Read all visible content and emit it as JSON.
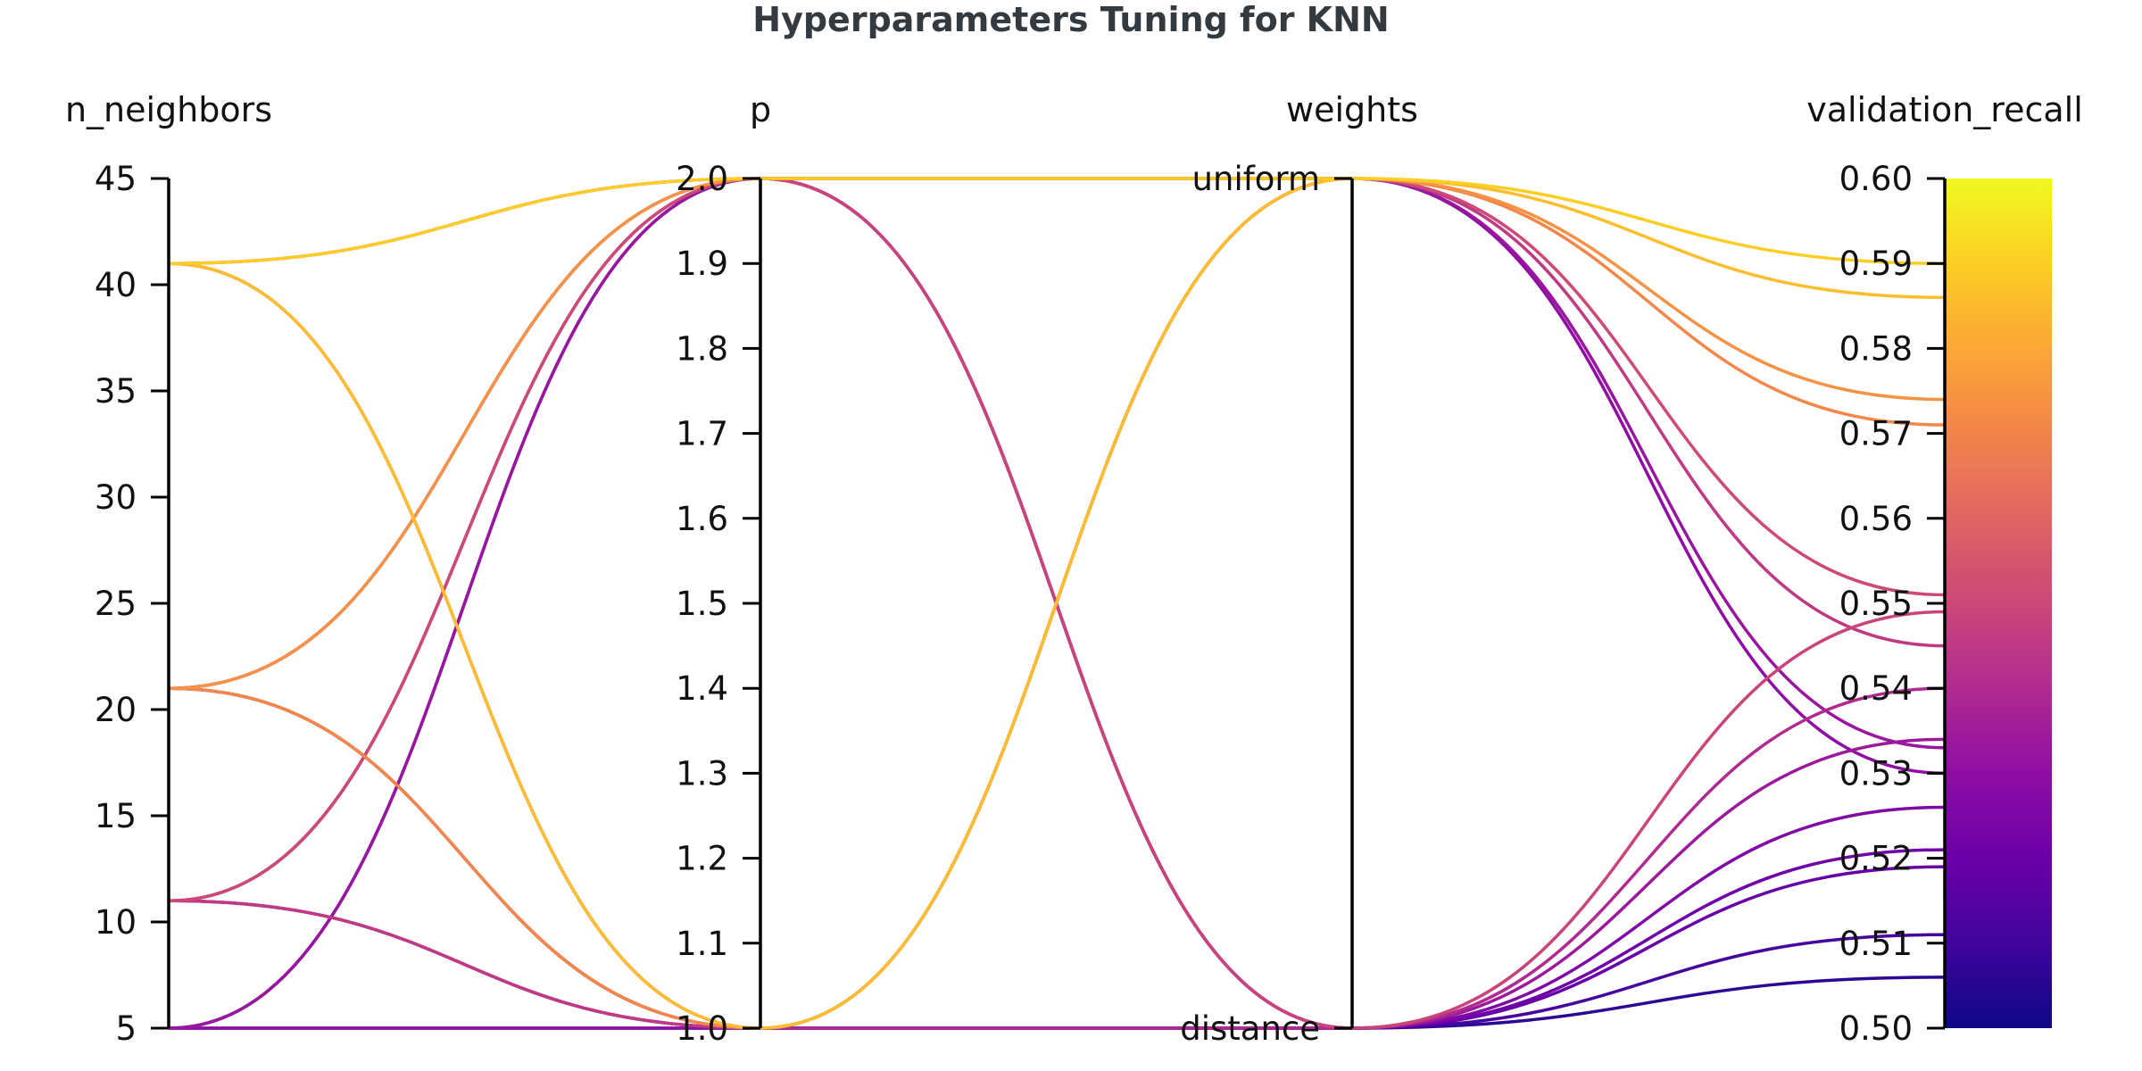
{
  "chart_data": {
    "type": "parallel_coordinates",
    "title": "Hyperparameters Tuning for KNN",
    "axes": [
      {
        "name": "n_neighbors",
        "kind": "numeric",
        "range": [
          5,
          45
        ],
        "ticks": [
          5,
          10,
          15,
          20,
          25,
          30,
          35,
          40,
          45
        ],
        "tick_labels": [
          "5",
          "10",
          "15",
          "20",
          "25",
          "30",
          "35",
          "40",
          "45"
        ]
      },
      {
        "name": "p",
        "kind": "numeric",
        "range": [
          1.0,
          2.0
        ],
        "ticks": [
          1.0,
          1.1,
          1.2,
          1.3,
          1.4,
          1.5,
          1.6,
          1.7,
          1.8,
          1.9,
          2.0
        ],
        "tick_labels": [
          "1.0",
          "1.1",
          "1.2",
          "1.3",
          "1.4",
          "1.5",
          "1.6",
          "1.7",
          "1.8",
          "1.9",
          "2.0"
        ]
      },
      {
        "name": "weights",
        "kind": "categorical",
        "categories": [
          "distance",
          "uniform"
        ],
        "tick_labels": [
          "distance",
          "uniform"
        ]
      },
      {
        "name": "validation_recall",
        "kind": "numeric",
        "range": [
          0.5,
          0.6
        ],
        "ticks": [
          0.5,
          0.51,
          0.52,
          0.53,
          0.54,
          0.55,
          0.56,
          0.57,
          0.58,
          0.59,
          0.6
        ],
        "tick_labels": [
          "0.50",
          "0.51",
          "0.52",
          "0.53",
          "0.54",
          "0.55",
          "0.56",
          "0.57",
          "0.58",
          "0.59",
          "0.60"
        ]
      }
    ],
    "colorscale": "plasma",
    "color_range": [
      0.5,
      0.6
    ],
    "colorbar": true,
    "rows": [
      {
        "n_neighbors": 41,
        "p": 2.0,
        "weights": "uniform",
        "validation_recall": 0.59
      },
      {
        "n_neighbors": 41,
        "p": 1.0,
        "weights": "uniform",
        "validation_recall": 0.586
      },
      {
        "n_neighbors": 21,
        "p": 2.0,
        "weights": "uniform",
        "validation_recall": 0.574
      },
      {
        "n_neighbors": 21,
        "p": 1.0,
        "weights": "uniform",
        "validation_recall": 0.571
      },
      {
        "n_neighbors": 11,
        "p": 2.0,
        "weights": "uniform",
        "validation_recall": 0.551
      },
      {
        "n_neighbors": 11,
        "p": 1.0,
        "weights": "uniform",
        "validation_recall": 0.545
      },
      {
        "n_neighbors": 5,
        "p": 2.0,
        "weights": "uniform",
        "validation_recall": 0.533
      },
      {
        "n_neighbors": 5,
        "p": 1.0,
        "weights": "uniform",
        "validation_recall": 0.53
      },
      {
        "n_neighbors": 41,
        "p": 2.0,
        "weights": "distance",
        "validation_recall": 0.549
      },
      {
        "n_neighbors": 41,
        "p": 1.0,
        "weights": "distance",
        "validation_recall": 0.54
      },
      {
        "n_neighbors": 21,
        "p": 2.0,
        "weights": "distance",
        "validation_recall": 0.534
      },
      {
        "n_neighbors": 21,
        "p": 1.0,
        "weights": "distance",
        "validation_recall": 0.526
      },
      {
        "n_neighbors": 11,
        "p": 2.0,
        "weights": "distance",
        "validation_recall": 0.521
      },
      {
        "n_neighbors": 11,
        "p": 1.0,
        "weights": "distance",
        "validation_recall": 0.519
      },
      {
        "n_neighbors": 5,
        "p": 2.0,
        "weights": "distance",
        "validation_recall": 0.511
      },
      {
        "n_neighbors": 5,
        "p": 1.0,
        "weights": "distance",
        "validation_recall": 0.506
      }
    ]
  }
}
